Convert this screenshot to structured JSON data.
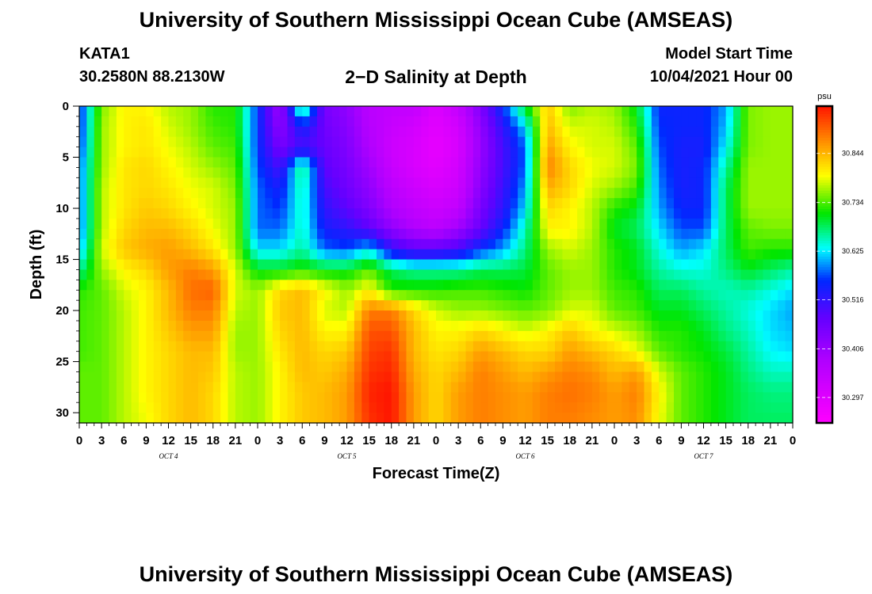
{
  "header": {
    "title": "University of Southern Mississippi Ocean Cube (AMSEAS)",
    "station_id": "KATA1",
    "station_coords": "30.2580N  88.2130W",
    "plot_title": "2−D Salinity at Depth",
    "model_start_label": "Model Start Time",
    "model_start_value": "10/04/2021 Hour 00"
  },
  "footer": {
    "title": "University of Southern Mississippi Ocean Cube (AMSEAS)"
  },
  "chart_data": {
    "type": "heatmap",
    "title": "2-D Salinity at Depth",
    "xlabel": "Forecast Time(Z)",
    "ylabel": "Depth (ft)",
    "x_unit": "hours since 10/04/2021 00Z",
    "xlim": [
      0,
      96
    ],
    "ylim": [
      0,
      31
    ],
    "y_inverted": true,
    "x_tick_labels": [
      "0",
      "3",
      "6",
      "9",
      "12",
      "15",
      "18",
      "21",
      "0",
      "3",
      "6",
      "9",
      "12",
      "15",
      "18",
      "21",
      "0",
      "3",
      "6",
      "9",
      "12",
      "15",
      "18",
      "21",
      "0",
      "3",
      "6",
      "9",
      "12",
      "15",
      "18",
      "21",
      "0"
    ],
    "y_ticks": [
      0,
      5,
      10,
      15,
      20,
      25,
      30
    ],
    "date_labels": [
      {
        "text": "OCT 4",
        "hour": 12
      },
      {
        "text": "OCT 5",
        "hour": 36
      },
      {
        "text": "OCT 6",
        "hour": 60
      },
      {
        "text": "OCT 7",
        "hour": 84
      }
    ],
    "colorbar": {
      "unit": "psu",
      "ticks": [
        "30.844",
        "30.734",
        "30.625",
        "30.516",
        "30.406",
        "30.297"
      ],
      "range": [
        30.24,
        30.95
      ]
    },
    "depths_ft": [
      0,
      2,
      4,
      6,
      8,
      10,
      12,
      14,
      16,
      18,
      20,
      22,
      24,
      26,
      28,
      31
    ],
    "hours": [
      0,
      3,
      6,
      9,
      12,
      15,
      18,
      21,
      24,
      27,
      30,
      33,
      36,
      39,
      42,
      45,
      48,
      51,
      54,
      57,
      60,
      63,
      66,
      69,
      72,
      75,
      78,
      81,
      84,
      87,
      90,
      93,
      96
    ],
    "salinity_psu": [
      [
        30.55,
        30.75,
        30.8,
        30.8,
        30.77,
        30.76,
        30.72,
        30.72,
        30.56,
        30.4,
        30.7,
        30.45,
        30.42,
        30.36,
        30.35,
        30.35,
        30.3,
        30.35,
        30.44,
        30.56,
        30.7,
        30.83,
        30.75,
        30.77,
        30.76,
        30.7,
        30.55,
        30.55,
        30.55,
        30.6,
        30.75,
        30.76,
        30.76
      ],
      [
        30.55,
        30.76,
        30.8,
        30.81,
        30.78,
        30.76,
        30.73,
        30.72,
        30.56,
        30.42,
        30.55,
        30.46,
        30.43,
        30.37,
        30.34,
        30.32,
        30.29,
        30.32,
        30.42,
        30.52,
        30.62,
        30.84,
        30.78,
        30.78,
        30.77,
        30.72,
        30.56,
        30.55,
        30.55,
        30.61,
        30.75,
        30.76,
        30.76
      ],
      [
        30.56,
        30.76,
        30.8,
        30.81,
        30.79,
        30.77,
        30.74,
        30.73,
        30.56,
        30.45,
        30.5,
        30.47,
        30.44,
        30.38,
        30.33,
        30.31,
        30.28,
        30.31,
        30.41,
        30.5,
        30.58,
        30.86,
        30.8,
        30.78,
        30.78,
        30.74,
        30.57,
        30.54,
        30.54,
        30.63,
        30.75,
        30.76,
        30.76
      ],
      [
        30.58,
        30.76,
        30.81,
        30.82,
        30.8,
        30.78,
        30.76,
        30.74,
        30.57,
        30.5,
        30.68,
        30.48,
        30.45,
        30.4,
        30.34,
        30.31,
        30.29,
        30.32,
        30.42,
        30.5,
        30.58,
        30.88,
        30.82,
        30.79,
        30.78,
        30.75,
        30.58,
        30.54,
        30.55,
        30.66,
        30.76,
        30.76,
        30.76
      ],
      [
        30.58,
        30.77,
        30.81,
        30.82,
        30.81,
        30.79,
        30.78,
        30.75,
        30.58,
        30.54,
        30.66,
        30.5,
        30.46,
        30.42,
        30.36,
        30.33,
        30.31,
        30.33,
        30.43,
        30.51,
        30.6,
        30.85,
        30.82,
        30.78,
        30.76,
        30.73,
        30.59,
        30.54,
        30.55,
        30.68,
        30.76,
        30.76,
        30.76
      ],
      [
        30.58,
        30.77,
        30.81,
        30.83,
        30.82,
        30.8,
        30.78,
        30.76,
        30.58,
        30.56,
        30.65,
        30.52,
        30.48,
        30.44,
        30.38,
        30.35,
        30.33,
        30.35,
        30.45,
        30.52,
        30.62,
        30.82,
        30.8,
        30.77,
        30.72,
        30.7,
        30.6,
        30.55,
        30.55,
        30.68,
        30.76,
        30.76,
        30.76
      ],
      [
        30.58,
        30.77,
        30.82,
        30.84,
        30.84,
        30.82,
        30.79,
        30.76,
        30.58,
        30.58,
        30.65,
        30.54,
        30.52,
        30.48,
        30.42,
        30.38,
        30.36,
        30.4,
        30.47,
        30.55,
        30.65,
        30.8,
        30.8,
        30.77,
        30.7,
        30.68,
        30.62,
        30.57,
        30.57,
        30.68,
        30.74,
        30.75,
        30.75
      ],
      [
        30.6,
        30.78,
        30.83,
        30.85,
        30.86,
        30.84,
        30.81,
        30.76,
        30.62,
        30.62,
        30.66,
        30.58,
        30.57,
        30.62,
        30.52,
        30.48,
        30.48,
        30.5,
        30.56,
        30.6,
        30.67,
        30.76,
        30.78,
        30.76,
        30.72,
        30.7,
        30.64,
        30.6,
        30.62,
        30.68,
        30.73,
        30.72,
        30.72
      ],
      [
        30.66,
        30.76,
        30.8,
        30.82,
        30.86,
        30.88,
        30.86,
        30.78,
        30.7,
        30.7,
        30.72,
        30.7,
        30.7,
        30.74,
        30.68,
        30.66,
        30.66,
        30.66,
        30.68,
        30.68,
        30.69,
        30.74,
        30.76,
        30.76,
        30.72,
        30.7,
        30.66,
        30.64,
        30.64,
        30.67,
        30.7,
        30.68,
        30.66
      ],
      [
        30.72,
        30.74,
        30.78,
        30.8,
        30.84,
        30.89,
        30.9,
        30.78,
        30.76,
        30.82,
        30.84,
        30.8,
        30.76,
        30.8,
        30.72,
        30.72,
        30.72,
        30.73,
        30.73,
        30.72,
        30.71,
        30.74,
        30.76,
        30.76,
        30.73,
        30.72,
        30.68,
        30.68,
        30.66,
        30.65,
        30.66,
        30.64,
        30.62
      ],
      [
        30.73,
        30.74,
        30.77,
        30.8,
        30.84,
        30.88,
        30.88,
        30.77,
        30.76,
        30.83,
        30.84,
        30.78,
        30.77,
        30.88,
        30.88,
        30.82,
        30.78,
        30.76,
        30.76,
        30.75,
        30.74,
        30.75,
        30.78,
        30.78,
        30.74,
        30.73,
        30.7,
        30.7,
        30.68,
        30.66,
        30.64,
        30.62,
        30.6
      ],
      [
        30.73,
        30.74,
        30.77,
        30.8,
        30.83,
        30.86,
        30.86,
        30.76,
        30.76,
        30.82,
        30.84,
        30.8,
        30.8,
        30.91,
        30.91,
        30.84,
        30.8,
        30.8,
        30.82,
        30.8,
        30.78,
        30.8,
        30.83,
        30.8,
        30.78,
        30.76,
        30.72,
        30.72,
        30.7,
        30.67,
        30.65,
        30.62,
        30.61
      ],
      [
        30.73,
        30.74,
        30.77,
        30.8,
        30.82,
        30.84,
        30.84,
        30.76,
        30.76,
        30.81,
        30.84,
        30.82,
        30.83,
        30.92,
        30.93,
        30.84,
        30.81,
        30.82,
        30.86,
        30.84,
        30.82,
        30.82,
        30.86,
        30.84,
        30.82,
        30.79,
        30.74,
        30.72,
        30.71,
        30.69,
        30.66,
        30.63,
        30.62
      ],
      [
        30.74,
        30.74,
        30.77,
        30.8,
        30.82,
        30.84,
        30.83,
        30.77,
        30.76,
        30.8,
        30.84,
        30.83,
        30.85,
        30.93,
        30.94,
        30.85,
        30.82,
        30.84,
        30.88,
        30.86,
        30.84,
        30.86,
        30.88,
        30.87,
        30.84,
        30.86,
        30.78,
        30.74,
        30.72,
        30.7,
        30.67,
        30.65,
        30.65
      ],
      [
        30.74,
        30.74,
        30.77,
        30.8,
        30.82,
        30.84,
        30.82,
        30.77,
        30.76,
        30.8,
        30.83,
        30.84,
        30.86,
        30.94,
        30.95,
        30.86,
        30.82,
        30.86,
        30.88,
        30.87,
        30.86,
        30.88,
        30.89,
        30.88,
        30.86,
        30.88,
        30.8,
        30.74,
        30.72,
        30.7,
        30.68,
        30.67,
        30.67
      ],
      [
        30.74,
        30.74,
        30.77,
        30.79,
        30.82,
        30.84,
        30.82,
        30.77,
        30.76,
        30.8,
        30.83,
        30.84,
        30.86,
        30.93,
        30.95,
        30.86,
        30.82,
        30.86,
        30.88,
        30.87,
        30.86,
        30.88,
        30.88,
        30.87,
        30.86,
        30.87,
        30.79,
        30.74,
        30.72,
        30.7,
        30.68,
        30.68,
        30.68
      ]
    ]
  }
}
